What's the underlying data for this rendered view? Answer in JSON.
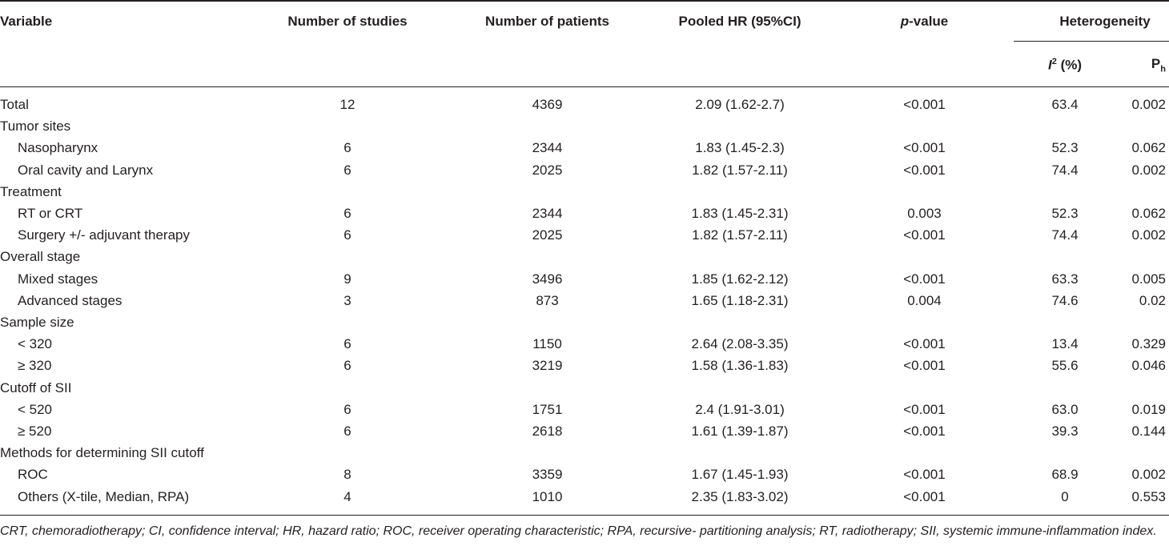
{
  "headers": {
    "variable": "Variable",
    "studies": "Number of studies",
    "patients": "Number of patients",
    "pooled_hr": "Pooled HR (95%CI)",
    "p_italic": "p",
    "p_rest": "-value",
    "heterogeneity": "Heterogeneity",
    "i2_i": "I",
    "i2_sup": "2",
    "i2_rest": " (%)",
    "ph_p": "P",
    "ph_sub": "h"
  },
  "rows": [
    {
      "type": "data",
      "variable": "Total",
      "studies": "12",
      "patients": "4369",
      "hr": "2.09 (1.62-2.7)",
      "p": "<0.001",
      "i2": "63.4",
      "ph": "0.002"
    },
    {
      "type": "group",
      "variable": "Tumor sites"
    },
    {
      "type": "data",
      "indent": true,
      "variable": "Nasopharynx",
      "studies": "6",
      "patients": "2344",
      "hr": "1.83 (1.45-2.3)",
      "p": "<0.001",
      "i2": "52.3",
      "ph": "0.062"
    },
    {
      "type": "data",
      "indent": true,
      "variable": "Oral cavity and Larynx",
      "studies": "6",
      "patients": "2025",
      "hr": "1.82 (1.57-2.11)",
      "p": "<0.001",
      "i2": "74.4",
      "ph": "0.002"
    },
    {
      "type": "group",
      "variable": "Treatment"
    },
    {
      "type": "data",
      "indent": true,
      "variable": "RT or CRT",
      "studies": "6",
      "patients": "2344",
      "hr": "1.83 (1.45-2.31)",
      "p": "0.003",
      "i2": "52.3",
      "ph": "0.062"
    },
    {
      "type": "data",
      "indent": true,
      "variable": "Surgery +/- adjuvant therapy",
      "studies": "6",
      "patients": "2025",
      "hr": "1.82 (1.57-2.11)",
      "p": "<0.001",
      "i2": "74.4",
      "ph": "0.002"
    },
    {
      "type": "group",
      "variable": "Overall stage"
    },
    {
      "type": "data",
      "indent": true,
      "variable": "Mixed stages",
      "studies": "9",
      "patients": "3496",
      "hr": "1.85 (1.62-2.12)",
      "p": "<0.001",
      "i2": "63.3",
      "ph": "0.005"
    },
    {
      "type": "data",
      "indent": true,
      "variable": "Advanced stages",
      "studies": "3",
      "patients": "873",
      "hr": "1.65 (1.18-2.31)",
      "p": "0.004",
      "i2": "74.6",
      "ph": "0.02"
    },
    {
      "type": "group",
      "variable": "Sample size"
    },
    {
      "type": "data",
      "indent": true,
      "variable": "< 320",
      "studies": "6",
      "patients": "1150",
      "hr": "2.64 (2.08-3.35)",
      "p": "<0.001",
      "i2": "13.4",
      "ph": "0.329"
    },
    {
      "type": "data",
      "indent": true,
      "variable": "≥ 320",
      "studies": "6",
      "patients": "3219",
      "hr": "1.58 (1.36-1.83)",
      "p": "<0.001",
      "i2": "55.6",
      "ph": "0.046"
    },
    {
      "type": "group",
      "variable": "Cutoff of SII"
    },
    {
      "type": "data",
      "indent": true,
      "variable": "< 520",
      "studies": "6",
      "patients": "1751",
      "hr": "2.4 (1.91-3.01)",
      "p": "<0.001",
      "i2": "63.0",
      "ph": "0.019"
    },
    {
      "type": "data",
      "indent": true,
      "variable": "≥ 520",
      "studies": "6",
      "patients": "2618",
      "hr": "1.61 (1.39-1.87)",
      "p": "<0.001",
      "i2": "39.3",
      "ph": "0.144"
    },
    {
      "type": "group",
      "variable": "Methods for determining SII cutoff"
    },
    {
      "type": "data",
      "indent": true,
      "variable": "ROC",
      "studies": "8",
      "patients": "3359",
      "hr": "1.67 (1.45-1.93)",
      "p": "<0.001",
      "i2": "68.9",
      "ph": "0.002"
    },
    {
      "type": "data",
      "indent": true,
      "variable": "Others  (X-tile, Median, RPA)",
      "studies": "4",
      "patients": "1010",
      "hr": "2.35 (1.83-3.02)",
      "p": "<0.001",
      "i2": "0",
      "ph": "0.553"
    }
  ],
  "footnote": "CRT, chemoradiotherapy; CI, confidence interval; HR, hazard ratio; ROC, receiver operating characteristic; RPA, recursive- partitioning analysis; RT, radiotherapy; SII, systemic immune-inflammation index."
}
